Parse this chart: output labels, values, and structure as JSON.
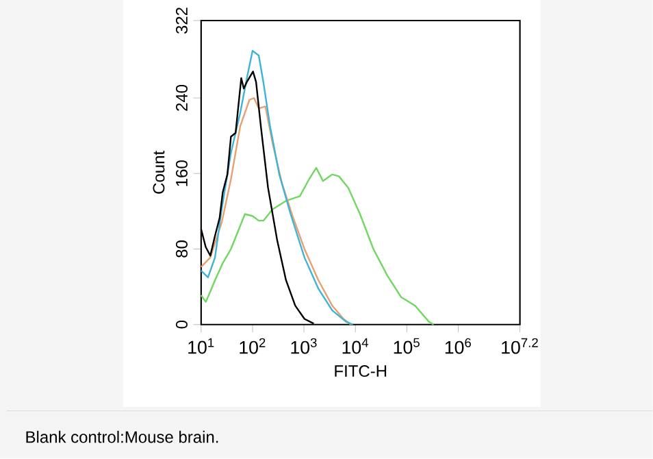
{
  "chart_data": {
    "type": "line",
    "xlabel": "FITC-H",
    "ylabel": "Count",
    "log": "x",
    "grid": false,
    "marker": "none",
    "line_style": "solid",
    "xlim": [
      10,
      15848932
    ],
    "ylim": [
      0,
      322
    ],
    "xticks": [
      {
        "value": 10,
        "label": "10$^{1}$"
      },
      {
        "value": 100,
        "label": "10$^{2}$"
      },
      {
        "value": 1000,
        "label": "10$^{3}$"
      },
      {
        "value": 10000,
        "label": "10$^{4}$"
      },
      {
        "value": 100000,
        "label": "10$^{5}$"
      },
      {
        "value": 1000000,
        "label": "10$^{6}$"
      },
      {
        "value": 15848932,
        "label": "10$^{7.2}$"
      }
    ],
    "yticks": [
      0,
      80,
      160,
      240,
      322
    ],
    "annotations": [
      "Blank control:Mouse brain."
    ],
    "series": [
      {
        "color": "#70d860",
        "x": [
          10,
          12.3,
          15.1,
          18.6,
          26.3,
          38,
          71,
          100,
          132,
          162,
          245,
          447,
          832,
          1259,
          1738,
          2344,
          3548,
          4786,
          7244,
          12300,
          22400,
          41700,
          77600,
          145000,
          269000,
          331000
        ],
        "values": [
          31,
          24,
          35,
          47,
          65,
          80,
          117,
          115,
          110,
          110,
          122,
          131,
          136,
          154,
          166,
          152,
          159,
          157,
          145,
          117,
          80,
          52,
          29,
          20,
          3,
          0
        ]
      },
      {
        "color": "#e8a070",
        "x": [
          10,
          15.1,
          25.1,
          38,
          57.5,
          87,
          107,
          132,
          178,
          245,
          372,
          617,
          1023,
          1905,
          3548,
          5888,
          8128
        ],
        "values": [
          61,
          71,
          108,
          154,
          210,
          238,
          240,
          229,
          231,
          192,
          150,
          113,
          80,
          47,
          20,
          6,
          0
        ]
      },
      {
        "color": "#3cb4d8",
        "x": [
          10,
          13.6,
          18.6,
          25.1,
          38,
          57.5,
          77.6,
          100,
          132,
          162,
          219,
          331,
          550,
          1023,
          1905,
          3548,
          6607,
          8913
        ],
        "values": [
          57,
          50,
          71,
          122,
          182,
          224,
          261,
          290,
          285,
          257,
          210,
          159,
          117,
          71,
          38,
          15,
          3,
          0
        ]
      },
      {
        "color": "#000000",
        "x": [
          10,
          12.3,
          15.1,
          18.6,
          22.9,
          26.3,
          32.4,
          38,
          46.8,
          60.3,
          67.6,
          77.6,
          102,
          117,
          145,
          200,
          302,
          447,
          676,
          1023,
          1549
        ],
        "values": [
          101,
          82,
          73,
          94,
          113,
          140,
          159,
          199,
          203,
          261,
          250,
          257,
          268,
          257,
          210,
          145,
          89,
          47,
          20,
          6,
          1
        ]
      }
    ]
  }
}
